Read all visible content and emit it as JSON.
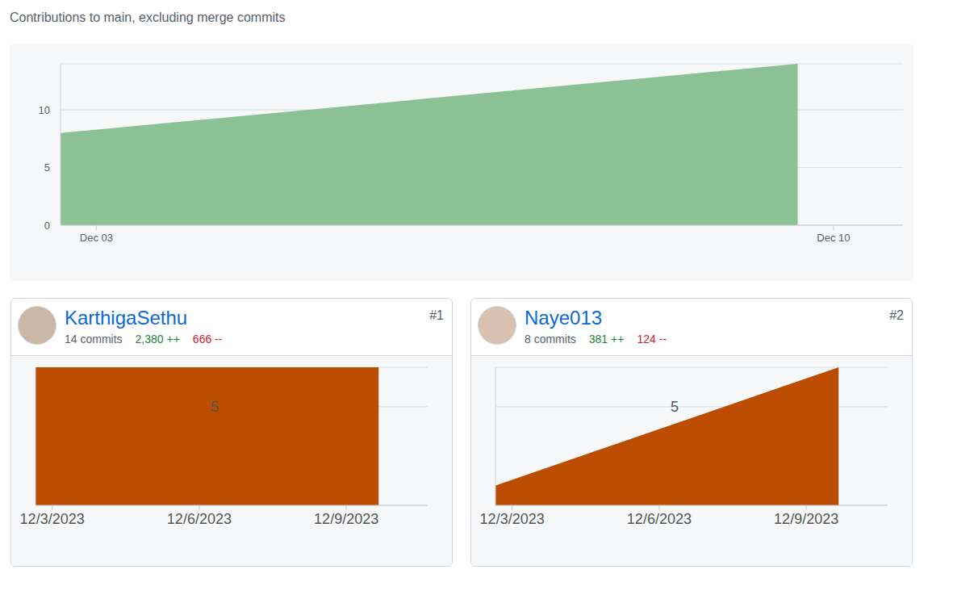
{
  "header": {
    "heading": "Contributions to main, excluding merge commits"
  },
  "cards": [
    {
      "rank": "#1",
      "name": "KarthigaSethu",
      "commits": "14 commits",
      "additions": "2,380 ++",
      "deletions": "666 --"
    },
    {
      "rank": "#2",
      "name": "Naye013",
      "commits": "8 commits",
      "additions": "381 ++",
      "deletions": "124 --"
    }
  ],
  "chart_data": [
    {
      "type": "area",
      "x": [
        2.66,
        9.66
      ],
      "values": [
        8,
        14
      ],
      "color": "#8cc196",
      "xlim": [
        2.66,
        10.66
      ],
      "xticks": [
        {
          "value": 3,
          "label": "Dec 03"
        },
        {
          "value": 10,
          "label": "Dec 10"
        }
      ],
      "ylim": [
        0,
        14
      ],
      "yticks": [
        0,
        5,
        10
      ],
      "grid": true
    },
    {
      "type": "area",
      "x": [
        2.66,
        9.66
      ],
      "values": [
        7,
        7
      ],
      "color": "#bc4c00",
      "xlim": [
        2.66,
        10.66
      ],
      "xticks": [
        {
          "value": 3,
          "label": "12/3/2023"
        },
        {
          "value": 6,
          "label": "12/6/2023"
        },
        {
          "value": 9,
          "label": "12/9/2023"
        }
      ],
      "ylim": [
        0,
        7
      ],
      "yticks": [
        5
      ],
      "grid": true
    },
    {
      "type": "area",
      "x": [
        2.66,
        9.66
      ],
      "values": [
        1,
        7
      ],
      "color": "#bc4c00",
      "xlim": [
        2.66,
        10.66
      ],
      "xticks": [
        {
          "value": 3,
          "label": "12/3/2023"
        },
        {
          "value": 6,
          "label": "12/6/2023"
        },
        {
          "value": 9,
          "label": "12/9/2023"
        }
      ],
      "ylim": [
        0,
        7
      ],
      "yticks": [
        5
      ],
      "grid": true
    }
  ]
}
